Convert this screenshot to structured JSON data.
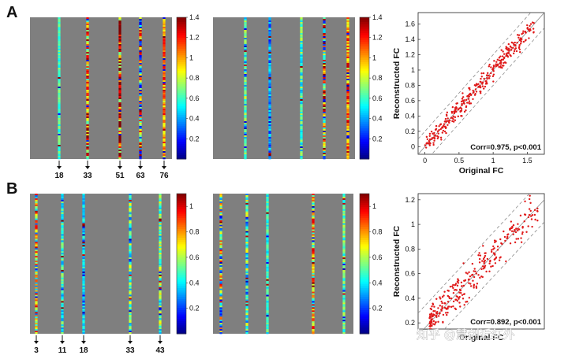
{
  "watermark": "知乎 @慧创近红外",
  "colors": {
    "matrix_bg": "#7f7f7f",
    "scatter_point": "#e01a1a",
    "fit_line": "#8c8c8c"
  },
  "chart_data": [
    {
      "type": "heatmap",
      "panel": "A",
      "id": "A-left",
      "columns": [
        18,
        33,
        51,
        63,
        76
      ],
      "column_labels": [
        "18",
        "33",
        "51",
        "63",
        "76"
      ],
      "n_columns": 86,
      "colorbar": {
        "min": 0,
        "max": 1.4,
        "ticks": [
          "0.2",
          "0.4",
          "0.6",
          "0.8",
          "1",
          "1.2",
          "1.4"
        ]
      }
    },
    {
      "type": "heatmap",
      "panel": "A",
      "id": "A-right",
      "colorbar": {
        "min": 0,
        "max": 1.4,
        "ticks": [
          "0.2",
          "0.4",
          "0.6",
          "0.8",
          "1",
          "1.2",
          "1.4"
        ]
      }
    },
    {
      "type": "scatter",
      "panel": "A",
      "id": "A-scatter",
      "xlabel": "Original FC",
      "ylabel": "Reconstructed FC",
      "xlim": [
        -0.1,
        1.75
      ],
      "ylim": [
        -0.1,
        1.75
      ],
      "xticks": [
        "0",
        "0.5",
        "1",
        "1.5"
      ],
      "yticks": [
        "0",
        "0.2",
        "0.4",
        "0.6",
        "0.8",
        "1",
        "1.2",
        "1.4",
        "1.6"
      ],
      "annotation": "Corr=0.975, p<0.001",
      "correlation": 0.975,
      "fit": {
        "slope": 1.0,
        "intercept": 0.0,
        "band": 0.2
      },
      "x_range_of_points": [
        0.0,
        1.6
      ],
      "n_points": 320
    },
    {
      "type": "heatmap",
      "panel": "B",
      "id": "B-left",
      "columns": [
        3,
        11,
        18,
        33,
        43
      ],
      "column_labels": [
        "3",
        "11",
        "18",
        "33",
        "43"
      ],
      "n_columns": 48,
      "colorbar": {
        "min": 0,
        "max": 1.1,
        "ticks": [
          "0.2",
          "0.4",
          "0.6",
          "0.8",
          "1"
        ]
      }
    },
    {
      "type": "heatmap",
      "panel": "B",
      "id": "B-right",
      "colorbar": {
        "min": 0,
        "max": 1.1,
        "ticks": [
          "0.2",
          "0.4",
          "0.6",
          "0.8",
          "1"
        ]
      }
    },
    {
      "type": "scatter",
      "panel": "B",
      "id": "B-scatter",
      "xlabel": "Original FC",
      "ylabel": "Reconstructed FC",
      "xlim": [
        0.1,
        1.2
      ],
      "ylim": [
        0.15,
        1.25
      ],
      "xticks": [],
      "yticks": [
        "0.2",
        "0.4",
        "0.6",
        "0.8",
        "1",
        "1.2"
      ],
      "annotation": "Corr=0.892, p<0.001",
      "correlation": 0.892,
      "fit": {
        "slope": 1.0,
        "intercept": 0.0,
        "band": 0.18
      },
      "x_range_of_points": [
        0.2,
        1.15
      ],
      "n_points": 300
    }
  ]
}
